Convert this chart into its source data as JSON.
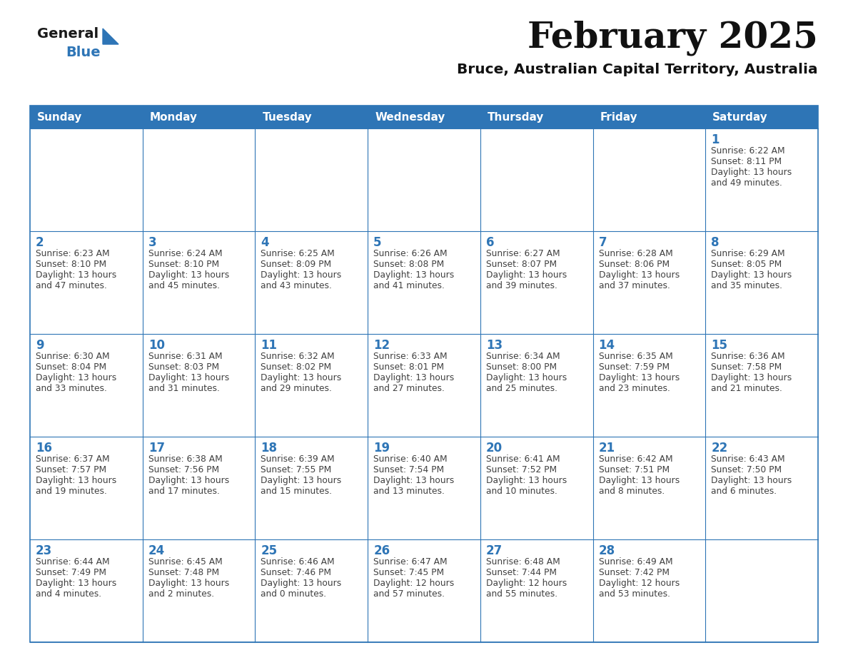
{
  "title": "February 2025",
  "subtitle": "Bruce, Australian Capital Territory, Australia",
  "header_bg": "#2E75B6",
  "header_text_color": "#FFFFFF",
  "border_color": "#2E75B6",
  "day_number_color": "#2E75B6",
  "text_color": "#404040",
  "days_of_week": [
    "Sunday",
    "Monday",
    "Tuesday",
    "Wednesday",
    "Thursday",
    "Friday",
    "Saturday"
  ],
  "weeks": [
    [
      {
        "day": "",
        "info": ""
      },
      {
        "day": "",
        "info": ""
      },
      {
        "day": "",
        "info": ""
      },
      {
        "day": "",
        "info": ""
      },
      {
        "day": "",
        "info": ""
      },
      {
        "day": "",
        "info": ""
      },
      {
        "day": "1",
        "info": "Sunrise: 6:22 AM\nSunset: 8:11 PM\nDaylight: 13 hours\nand 49 minutes."
      }
    ],
    [
      {
        "day": "2",
        "info": "Sunrise: 6:23 AM\nSunset: 8:10 PM\nDaylight: 13 hours\nand 47 minutes."
      },
      {
        "day": "3",
        "info": "Sunrise: 6:24 AM\nSunset: 8:10 PM\nDaylight: 13 hours\nand 45 minutes."
      },
      {
        "day": "4",
        "info": "Sunrise: 6:25 AM\nSunset: 8:09 PM\nDaylight: 13 hours\nand 43 minutes."
      },
      {
        "day": "5",
        "info": "Sunrise: 6:26 AM\nSunset: 8:08 PM\nDaylight: 13 hours\nand 41 minutes."
      },
      {
        "day": "6",
        "info": "Sunrise: 6:27 AM\nSunset: 8:07 PM\nDaylight: 13 hours\nand 39 minutes."
      },
      {
        "day": "7",
        "info": "Sunrise: 6:28 AM\nSunset: 8:06 PM\nDaylight: 13 hours\nand 37 minutes."
      },
      {
        "day": "8",
        "info": "Sunrise: 6:29 AM\nSunset: 8:05 PM\nDaylight: 13 hours\nand 35 minutes."
      }
    ],
    [
      {
        "day": "9",
        "info": "Sunrise: 6:30 AM\nSunset: 8:04 PM\nDaylight: 13 hours\nand 33 minutes."
      },
      {
        "day": "10",
        "info": "Sunrise: 6:31 AM\nSunset: 8:03 PM\nDaylight: 13 hours\nand 31 minutes."
      },
      {
        "day": "11",
        "info": "Sunrise: 6:32 AM\nSunset: 8:02 PM\nDaylight: 13 hours\nand 29 minutes."
      },
      {
        "day": "12",
        "info": "Sunrise: 6:33 AM\nSunset: 8:01 PM\nDaylight: 13 hours\nand 27 minutes."
      },
      {
        "day": "13",
        "info": "Sunrise: 6:34 AM\nSunset: 8:00 PM\nDaylight: 13 hours\nand 25 minutes."
      },
      {
        "day": "14",
        "info": "Sunrise: 6:35 AM\nSunset: 7:59 PM\nDaylight: 13 hours\nand 23 minutes."
      },
      {
        "day": "15",
        "info": "Sunrise: 6:36 AM\nSunset: 7:58 PM\nDaylight: 13 hours\nand 21 minutes."
      }
    ],
    [
      {
        "day": "16",
        "info": "Sunrise: 6:37 AM\nSunset: 7:57 PM\nDaylight: 13 hours\nand 19 minutes."
      },
      {
        "day": "17",
        "info": "Sunrise: 6:38 AM\nSunset: 7:56 PM\nDaylight: 13 hours\nand 17 minutes."
      },
      {
        "day": "18",
        "info": "Sunrise: 6:39 AM\nSunset: 7:55 PM\nDaylight: 13 hours\nand 15 minutes."
      },
      {
        "day": "19",
        "info": "Sunrise: 6:40 AM\nSunset: 7:54 PM\nDaylight: 13 hours\nand 13 minutes."
      },
      {
        "day": "20",
        "info": "Sunrise: 6:41 AM\nSunset: 7:52 PM\nDaylight: 13 hours\nand 10 minutes."
      },
      {
        "day": "21",
        "info": "Sunrise: 6:42 AM\nSunset: 7:51 PM\nDaylight: 13 hours\nand 8 minutes."
      },
      {
        "day": "22",
        "info": "Sunrise: 6:43 AM\nSunset: 7:50 PM\nDaylight: 13 hours\nand 6 minutes."
      }
    ],
    [
      {
        "day": "23",
        "info": "Sunrise: 6:44 AM\nSunset: 7:49 PM\nDaylight: 13 hours\nand 4 minutes."
      },
      {
        "day": "24",
        "info": "Sunrise: 6:45 AM\nSunset: 7:48 PM\nDaylight: 13 hours\nand 2 minutes."
      },
      {
        "day": "25",
        "info": "Sunrise: 6:46 AM\nSunset: 7:46 PM\nDaylight: 13 hours\nand 0 minutes."
      },
      {
        "day": "26",
        "info": "Sunrise: 6:47 AM\nSunset: 7:45 PM\nDaylight: 12 hours\nand 57 minutes."
      },
      {
        "day": "27",
        "info": "Sunrise: 6:48 AM\nSunset: 7:44 PM\nDaylight: 12 hours\nand 55 minutes."
      },
      {
        "day": "28",
        "info": "Sunrise: 6:49 AM\nSunset: 7:42 PM\nDaylight: 12 hours\nand 53 minutes."
      },
      {
        "day": "",
        "info": ""
      }
    ]
  ],
  "logo_general_color": "#1a1a1a",
  "logo_blue_color": "#2E75B6",
  "fig_bg": "#FFFFFF"
}
